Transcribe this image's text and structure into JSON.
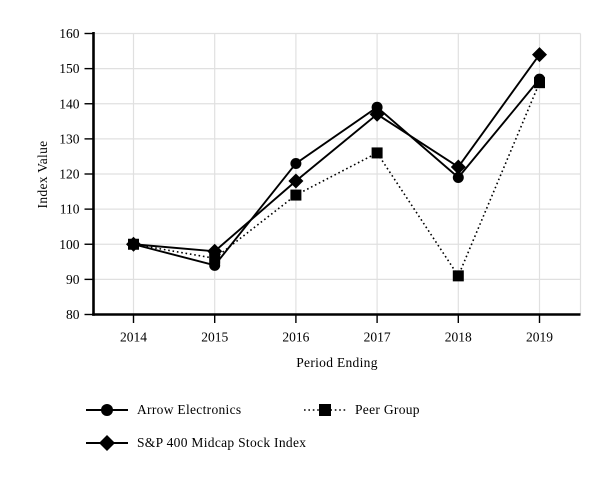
{
  "chart_data": {
    "type": "line",
    "title": "",
    "xlabel": "Period Ending",
    "ylabel": "Index Value",
    "categories": [
      "2014",
      "2015",
      "2016",
      "2017",
      "2018",
      "2019"
    ],
    "y_ticks": [
      80,
      90,
      100,
      110,
      120,
      130,
      140,
      150,
      160
    ],
    "ylim": [
      80,
      160
    ],
    "grid": true,
    "legend_position": "bottom-left",
    "series": [
      {
        "name": "Arrow Electronics",
        "marker": "circle",
        "line_style": "solid",
        "values": [
          100,
          94,
          123,
          139,
          119,
          147
        ]
      },
      {
        "name": "Peer Group",
        "marker": "square",
        "line_style": "dotted",
        "values": [
          100,
          96,
          114,
          126,
          91,
          146
        ]
      },
      {
        "name": "S&P 400 Midcap Stock Index",
        "marker": "diamond",
        "line_style": "solid",
        "values": [
          100,
          98,
          118,
          137,
          122,
          154
        ]
      }
    ],
    "colors": {
      "line": "#000000",
      "grid": "#e0e0e0",
      "text": "#000000",
      "background": "#ffffff"
    }
  }
}
